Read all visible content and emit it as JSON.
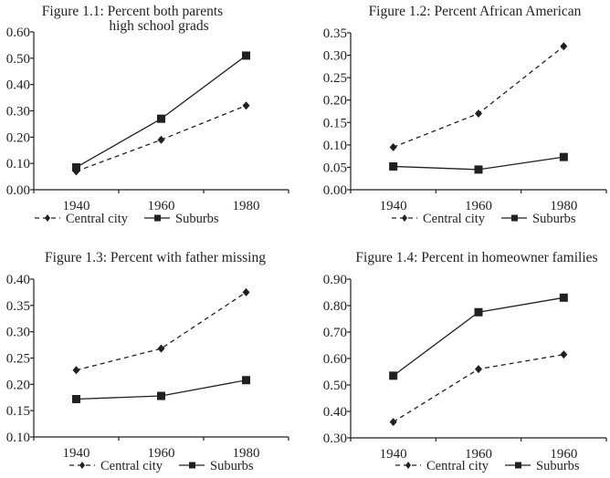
{
  "chart_data": [
    {
      "type": "line",
      "title": [
        "Figure 1.1: Percent both parents",
        "high school grads"
      ],
      "categories": [
        "1940",
        "1960",
        "1980"
      ],
      "ylim": [
        0,
        0.6
      ],
      "yticks": [
        "0.00",
        "0.10",
        "0.20",
        "0.30",
        "0.40",
        "0.50",
        "0.60"
      ],
      "series": [
        {
          "name": "Central city",
          "style": "dashed",
          "marker": "diamond",
          "values": [
            0.07,
            0.19,
            0.32
          ]
        },
        {
          "name": "Suburbs",
          "style": "solid",
          "marker": "square",
          "values": [
            0.085,
            0.27,
            0.51
          ]
        }
      ],
      "legend": "bottom"
    },
    {
      "type": "line",
      "title": [
        "Figure 1.2: Percent African American"
      ],
      "categories": [
        "1940",
        "1960",
        "1980"
      ],
      "ylim": [
        0,
        0.35
      ],
      "yticks": [
        "0.00",
        "0.05",
        "0.10",
        "0.15",
        "0.20",
        "0.25",
        "0.30",
        "0.35"
      ],
      "series": [
        {
          "name": "Central city",
          "style": "dashed",
          "marker": "diamond",
          "values": [
            0.095,
            0.17,
            0.32
          ]
        },
        {
          "name": "Suburbs",
          "style": "solid",
          "marker": "square",
          "values": [
            0.052,
            0.045,
            0.073
          ]
        }
      ],
      "legend": "bottom"
    },
    {
      "type": "line",
      "title": [
        "Figure 1.3: Percent with father missing"
      ],
      "categories": [
        "1940",
        "1960",
        "1980"
      ],
      "ylim": [
        0.1,
        0.4
      ],
      "yticks": [
        "0.10",
        "0.15",
        "0.20",
        "0.25",
        "0.30",
        "0.35",
        "0.40"
      ],
      "series": [
        {
          "name": "Central city",
          "style": "dashed",
          "marker": "diamond",
          "values": [
            0.227,
            0.268,
            0.375
          ]
        },
        {
          "name": "Suburbs",
          "style": "solid",
          "marker": "square",
          "values": [
            0.172,
            0.178,
            0.208
          ]
        }
      ],
      "legend": "bottom"
    },
    {
      "type": "line",
      "title": [
        "Figure 1.4: Percent in homeowner families"
      ],
      "categories": [
        "1940",
        "1960",
        "1960"
      ],
      "ylim": [
        0.3,
        0.9
      ],
      "yticks": [
        "0.30",
        "0.40",
        "0.50",
        "0.60",
        "0.70",
        "0.80",
        "0.90"
      ],
      "series": [
        {
          "name": "Central city",
          "style": "dashed",
          "marker": "diamond",
          "values": [
            0.36,
            0.56,
            0.615
          ]
        },
        {
          "name": "Suburbs",
          "style": "solid",
          "marker": "square",
          "values": [
            0.535,
            0.775,
            0.83
          ]
        }
      ],
      "legend": "bottom"
    }
  ]
}
